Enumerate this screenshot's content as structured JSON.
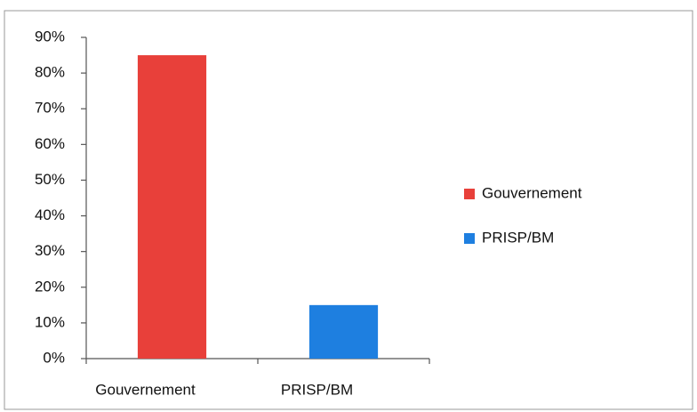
{
  "chart_data": {
    "type": "bar",
    "categories": [
      "Gouvernement",
      "PRISP/BM"
    ],
    "values": [
      85,
      15
    ],
    "colors": [
      "#e8403a",
      "#1e7fe0"
    ],
    "ylim": [
      0,
      90
    ],
    "yticks": [
      {
        "value": 0,
        "label": "0%"
      },
      {
        "value": 10,
        "label": "10%"
      },
      {
        "value": 20,
        "label": "20%"
      },
      {
        "value": 30,
        "label": "30%"
      },
      {
        "value": 40,
        "label": "40%"
      },
      {
        "value": 50,
        "label": "50%"
      },
      {
        "value": 60,
        "label": "60%"
      },
      {
        "value": 70,
        "label": "70%"
      },
      {
        "value": 80,
        "label": "80%"
      },
      {
        "value": 90,
        "label": "90%"
      }
    ],
    "grid": false,
    "legend": "right"
  }
}
